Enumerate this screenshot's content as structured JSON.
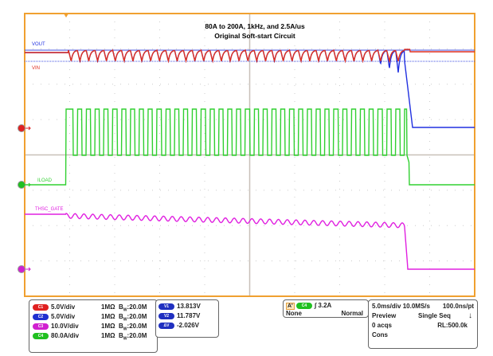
{
  "chart_data": {
    "type": "line",
    "title": "80A to 200A, 1kHz, and 2.5A/us",
    "subtitle": "Original  Soft-start Circuit",
    "grid": true,
    "x_divisions": 10,
    "y_divisions": 8,
    "time_per_div_ms": 5,
    "series": [
      {
        "name": "VOUT",
        "channel": "C2",
        "color": "#2030e0",
        "before_V": 13.6,
        "ripple_low_V": 11.8,
        "ripple_high_V": 13.8,
        "after_V": 7.0
      },
      {
        "name": "VIN",
        "channel": "C1",
        "color": "#e03020",
        "before_V": 13.6,
        "ripple_low_V": 11.8,
        "ripple_high_V": 13.8,
        "after_V": 13.6
      },
      {
        "name": "ILOAD",
        "channel": "C4",
        "color": "#30d030",
        "low_A": 80,
        "high_A": 200,
        "frequency_kHz": 1,
        "after_A": 0
      },
      {
        "name": "THSC_GATE",
        "channel": "C3",
        "color": "#e020e0",
        "before_V": 20,
        "after_V": 0
      }
    ]
  },
  "channels": [
    {
      "id": "C1",
      "scale": "5.0V/div",
      "imp": "1MΩ",
      "bw": "20.0M",
      "color": "#e02020"
    },
    {
      "id": "C2",
      "scale": "5.0V/div",
      "imp": "1MΩ",
      "bw": "20.0M",
      "color": "#2030d0"
    },
    {
      "id": "C3",
      "scale": "10.0V/div",
      "imp": "1MΩ",
      "bw": "20.0M",
      "color": "#d020d0"
    },
    {
      "id": "C4",
      "scale": "80.0A/div",
      "imp": "1MΩ",
      "bw": "20.0M",
      "color": "#20c020"
    }
  ],
  "bw_prefix": "B",
  "bw_sub": "W",
  "cursors": [
    {
      "id": "V1",
      "value": "13.813V"
    },
    {
      "id": "V2",
      "value": "11.787V"
    },
    {
      "id": "ΔV",
      "value": "-2.026V"
    }
  ],
  "trigger": {
    "mode": "A'",
    "source": "C4",
    "level": "3.2A",
    "coupling": "None",
    "type": "Normal"
  },
  "timebase": {
    "scale": "5.0ms/div",
    "rate": "10.0MS/s",
    "pt": "100.0ns/pt",
    "state": "Preview",
    "seq": "Single Seq",
    "acqs": "0 acqs",
    "rl": "RL:500.0k",
    "cons": "Cons"
  }
}
